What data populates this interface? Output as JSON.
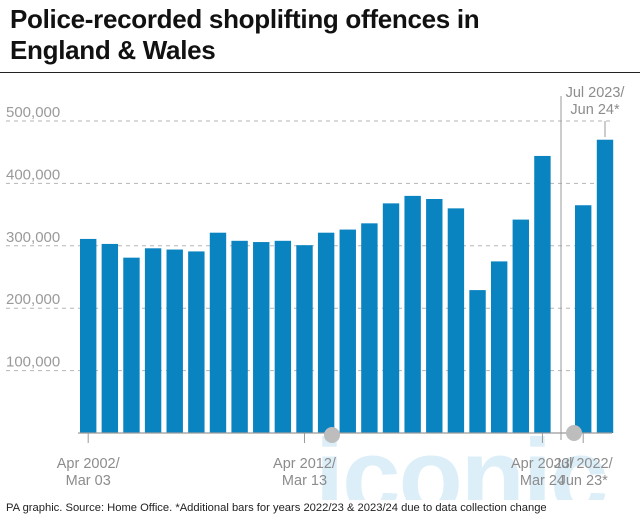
{
  "header": {
    "title": "Police-recorded shoplifting offences in England & Wales"
  },
  "footer": {
    "source": "PA graphic. Source: Home Office. *Additional bars for years 2022/23 & 2023/24 due to data collection change"
  },
  "colors": {
    "bar": "#0a84c0",
    "grid": "#b5b5b5",
    "axis": "#9a9a9a",
    "text": "#8c8c8c",
    "watermark": "#d6ecf7"
  },
  "watermark": {
    "text": "iconic",
    "icon": "watermark-logo-icon"
  },
  "chart_data": {
    "type": "bar",
    "title": "Police-recorded shoplifting offences in England & Wales",
    "xlabel": "",
    "ylabel": "",
    "ylim": [
      0,
      500000
    ],
    "yticks": [
      100000,
      200000,
      300000,
      400000,
      500000
    ],
    "ytick_labels": [
      "100,000",
      "200,000",
      "300,000",
      "400,000",
      "500,000"
    ],
    "grid": true,
    "series": [
      {
        "values": [
          311000,
          303000,
          281000,
          296000,
          294000,
          291000,
          321000,
          308000,
          306000,
          308000,
          301000,
          321000,
          326000,
          336000,
          368000,
          380000,
          375000,
          360000,
          229000,
          275000,
          342000,
          444000
        ]
      },
      {
        "values": [
          365000,
          470000
        ]
      }
    ],
    "category_labels": [
      {
        "index": 0,
        "series": 0,
        "lines": [
          "Apr 2002/",
          "Mar 03"
        ]
      },
      {
        "index": 10,
        "series": 0,
        "lines": [
          "Apr 2012/",
          "Mar 13"
        ]
      },
      {
        "index": 21,
        "series": 0,
        "lines": [
          "Apr 2023/",
          "Mar 24"
        ]
      },
      {
        "index": 0,
        "series": 1,
        "lines": [
          "Jul 2022/",
          "Jun 23*"
        ]
      }
    ],
    "annotations": [
      {
        "index": 1,
        "series": 1,
        "lines": [
          "Jul 2023/",
          "Jun 24*"
        ]
      }
    ]
  }
}
